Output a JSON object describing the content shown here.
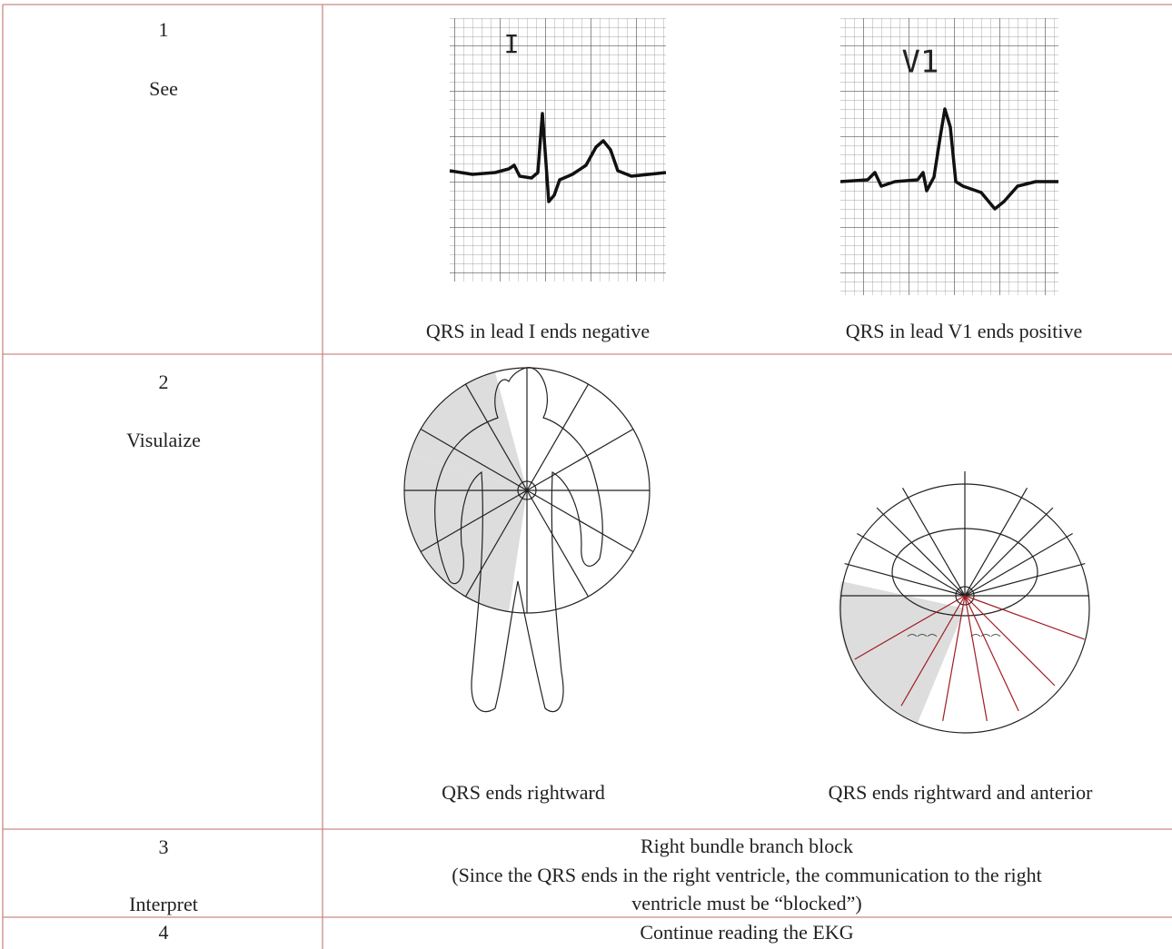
{
  "table": {
    "rows": [
      {
        "step": "1",
        "label": "See",
        "cells": [
          {
            "lead": "I",
            "caption": "QRS in lead I ends negative"
          },
          {
            "lead": "V1",
            "caption": "QRS in lead V1 ends positive"
          }
        ]
      },
      {
        "step": "2",
        "label": "Visulaize",
        "cells": [
          {
            "caption": "QRS ends rightward"
          },
          {
            "caption": "QRS ends rightward and anterior"
          }
        ]
      },
      {
        "step": "3",
        "label": "Interpret",
        "text": [
          "Right bundle branch block",
          "(Since the QRS ends in the right ventricle, the communication to the right",
          "ventricle must be “blocked”)"
        ]
      },
      {
        "step": "4",
        "text": [
          "Continue reading the EKG"
        ]
      }
    ]
  }
}
